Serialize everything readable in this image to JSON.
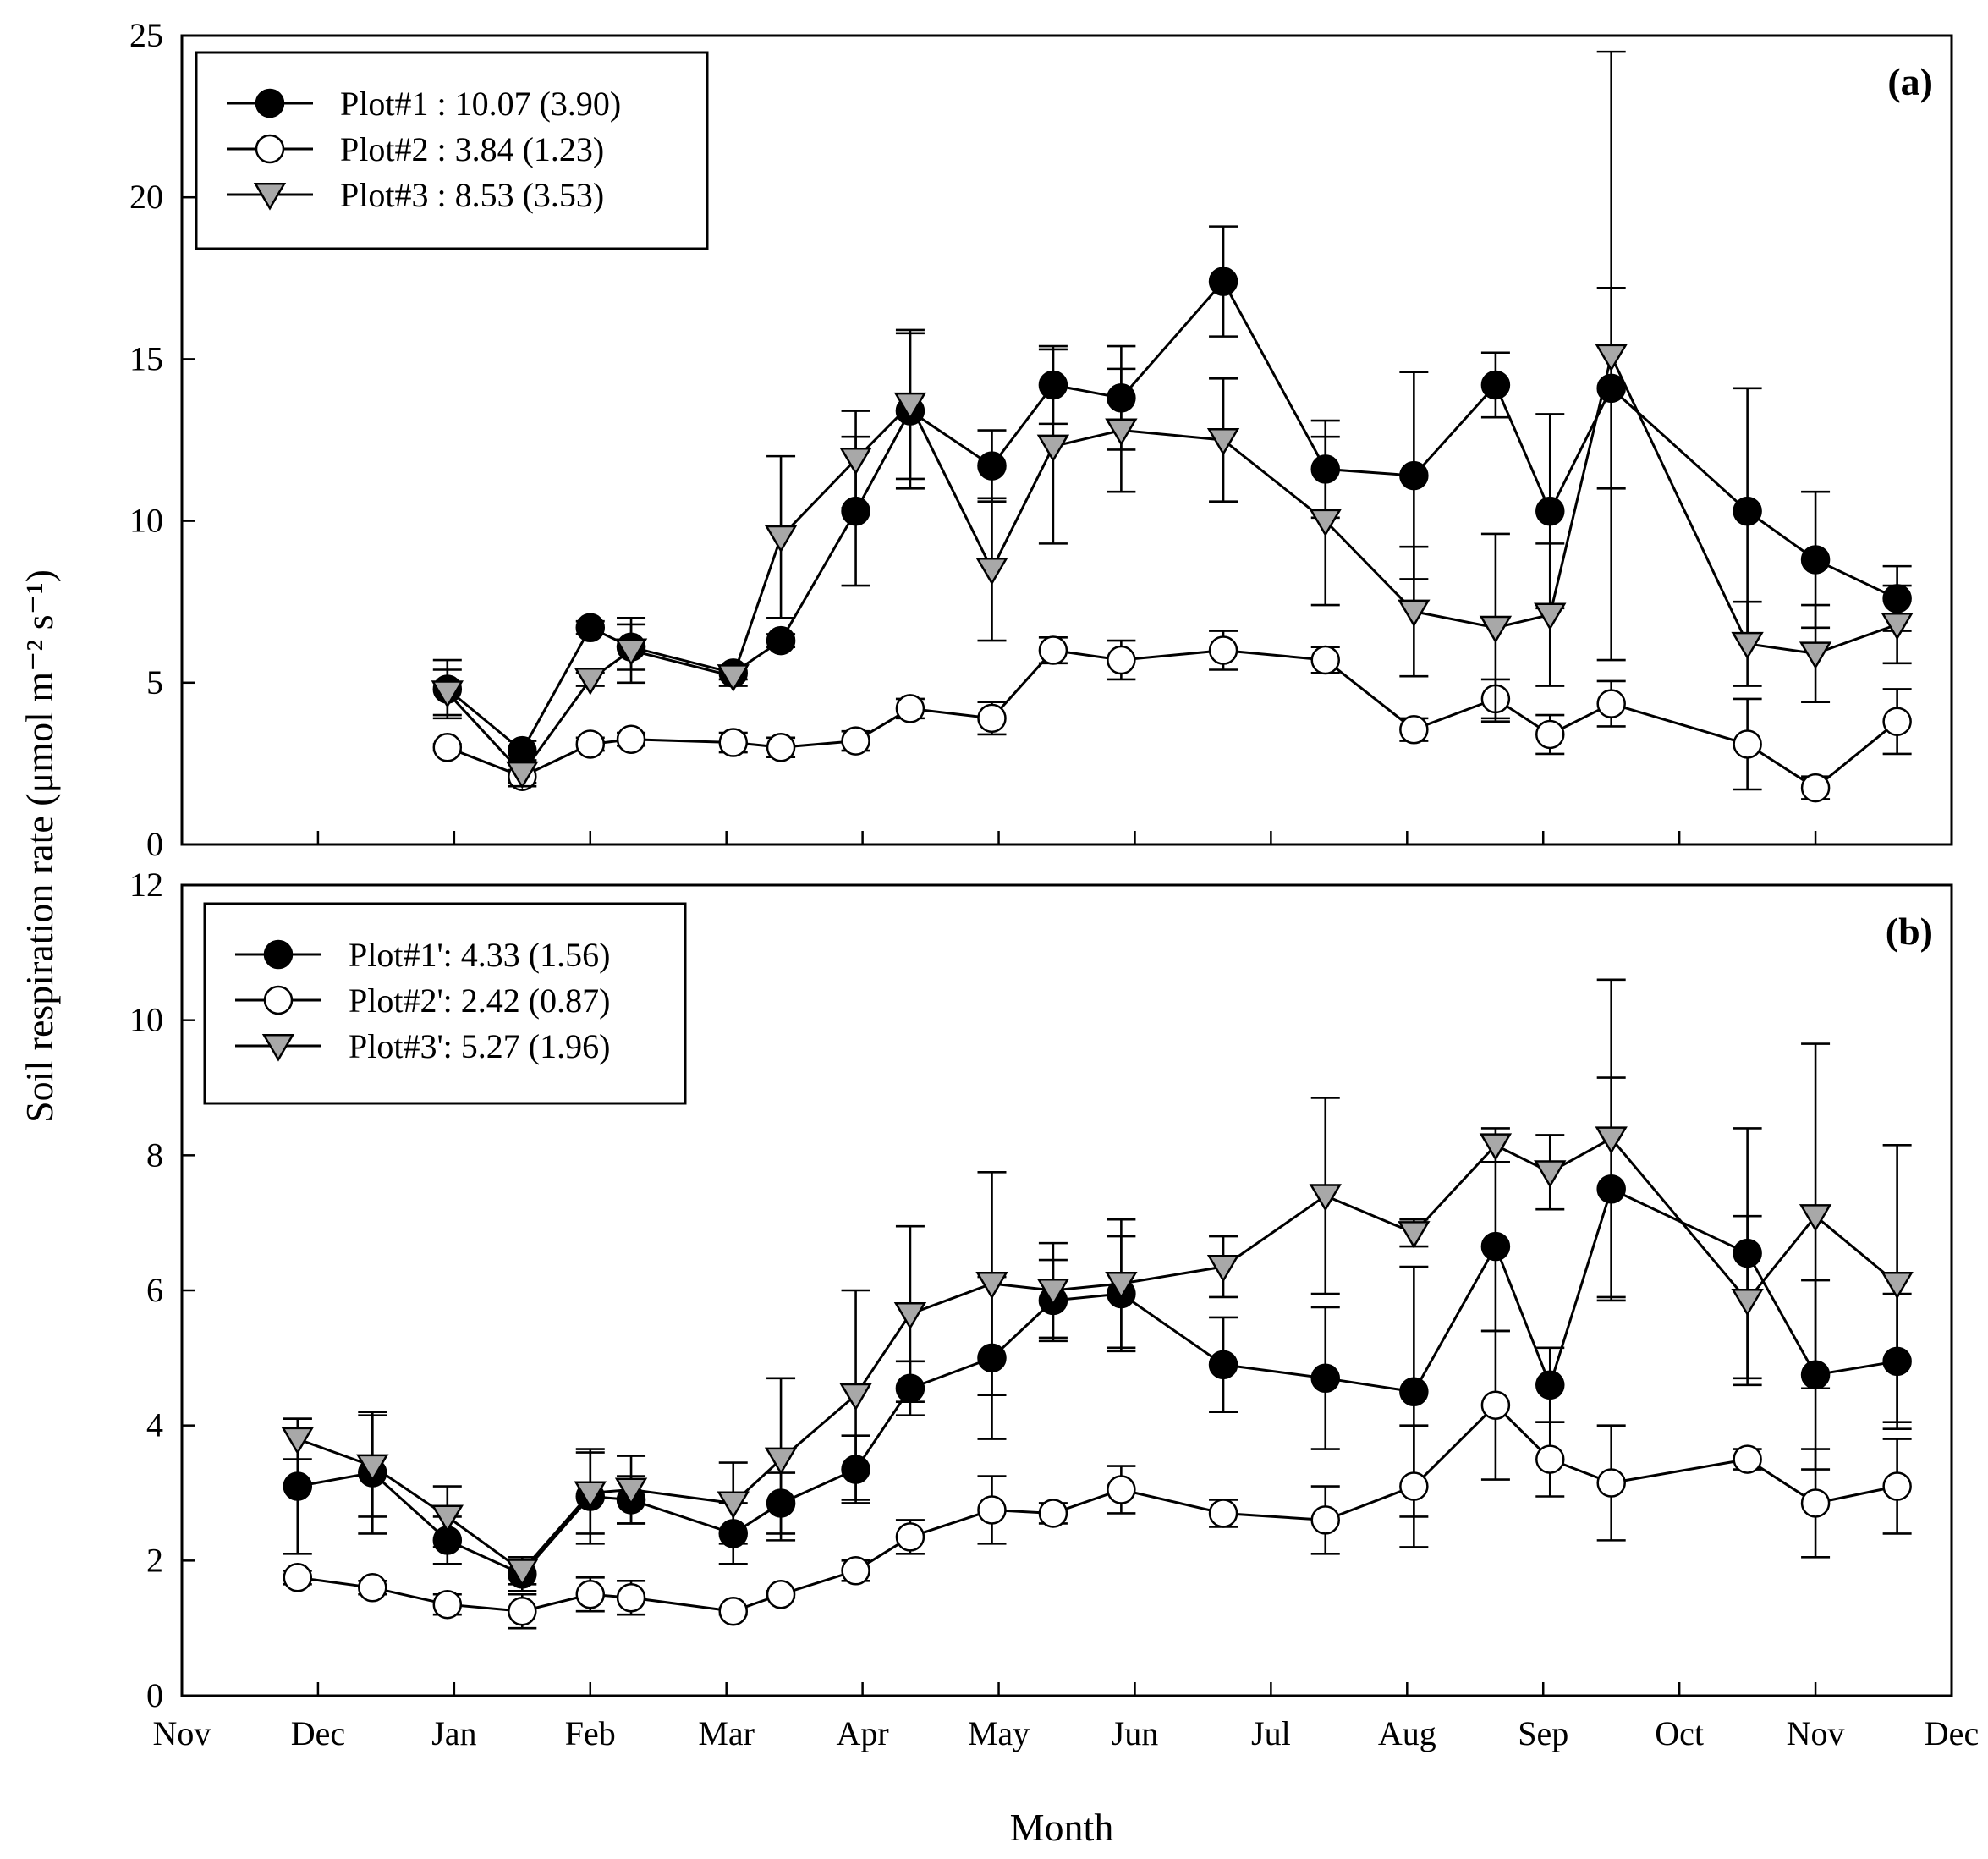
{
  "y_axis_title": "Soil respiration rate (μmol m⁻² s⁻¹)",
  "x_axis_title": "Month",
  "colors": {
    "filled": "#000000",
    "open": "#ffffff",
    "triangle": "#a8a8a8"
  },
  "chart_data": [
    {
      "type": "line",
      "panel_label": "(a)",
      "ylabel": "Soil respiration rate (μmol m⁻² s⁻¹)",
      "xlabel": "Month",
      "ylim": [
        0,
        25
      ],
      "yticks": [
        0,
        5,
        10,
        15,
        20,
        25
      ],
      "x_unit": "months since November 1 (month tick positions)",
      "xlim": [
        0,
        13
      ],
      "xticks": [
        "Nov",
        "Dec",
        "Jan",
        "Feb",
        "Mar",
        "Apr",
        "May",
        "Jun",
        "Jul",
        "Aug",
        "Sep",
        "Oct",
        "Nov",
        "Dec"
      ],
      "legend_position": "top-left",
      "series": [
        {
          "name": "Plot#1 : 10.07 (3.90)",
          "marker": "filled-circle",
          "points": [
            {
              "x": 1.95,
              "y": 4.8,
              "err": 0.9
            },
            {
              "x": 2.5,
              "y": 2.9,
              "err": 0.3
            },
            {
              "x": 3.0,
              "y": 6.7,
              "err": 0.2
            },
            {
              "x": 3.3,
              "y": 6.1,
              "err": 0.7
            },
            {
              "x": 4.05,
              "y": 5.3,
              "err": 0.2
            },
            {
              "x": 4.4,
              "y": 6.3,
              "err": 0.2
            },
            {
              "x": 4.95,
              "y": 10.3,
              "err": 2.3
            },
            {
              "x": 5.35,
              "y": 13.4,
              "err": 2.4
            },
            {
              "x": 5.95,
              "y": 11.7,
              "err": 1.1
            },
            {
              "x": 6.4,
              "y": 14.2,
              "err": 1.2
            },
            {
              "x": 6.9,
              "y": 13.8,
              "err": 1.6
            },
            {
              "x": 7.65,
              "y": 17.4,
              "err": 1.7
            },
            {
              "x": 8.4,
              "y": 11.6,
              "err": 1.5
            },
            {
              "x": 9.05,
              "y": 11.4,
              "err": 3.2
            },
            {
              "x": 9.65,
              "y": 14.2,
              "err": 1.0
            },
            {
              "x": 10.05,
              "y": 10.3,
              "err": 3.0
            },
            {
              "x": 10.5,
              "y": 14.1,
              "err": 3.1
            },
            {
              "x": 11.5,
              "y": 10.3,
              "err": 3.8
            },
            {
              "x": 12.0,
              "y": 8.8,
              "err": 2.1
            },
            {
              "x": 12.6,
              "y": 7.6,
              "err": 1.0
            }
          ]
        },
        {
          "name": "Plot#2 : 3.84 (1.23)",
          "marker": "open-circle",
          "points": [
            {
              "x": 1.95,
              "y": 3.0,
              "err": 0.1
            },
            {
              "x": 2.5,
              "y": 2.1,
              "err": 0.2
            },
            {
              "x": 3.0,
              "y": 3.1,
              "err": 0.2
            },
            {
              "x": 3.3,
              "y": 3.25,
              "err": 0.2
            },
            {
              "x": 4.05,
              "y": 3.15,
              "err": 0.3
            },
            {
              "x": 4.4,
              "y": 3.0,
              "err": 0.3
            },
            {
              "x": 4.95,
              "y": 3.2,
              "err": 0.3
            },
            {
              "x": 5.35,
              "y": 4.2,
              "err": 0.3
            },
            {
              "x": 5.95,
              "y": 3.9,
              "err": 0.5
            },
            {
              "x": 6.4,
              "y": 6.0,
              "err": 0.4
            },
            {
              "x": 6.9,
              "y": 5.7,
              "err": 0.6
            },
            {
              "x": 7.65,
              "y": 6.0,
              "err": 0.6
            },
            {
              "x": 8.4,
              "y": 5.7,
              "err": 0.4
            },
            {
              "x": 9.05,
              "y": 3.55,
              "err": 0.35
            },
            {
              "x": 9.65,
              "y": 4.5,
              "err": 0.6
            },
            {
              "x": 10.05,
              "y": 3.4,
              "err": 0.6
            },
            {
              "x": 10.5,
              "y": 4.35,
              "err": 0.7
            },
            {
              "x": 11.5,
              "y": 3.1,
              "err": 1.4
            },
            {
              "x": 12.0,
              "y": 1.75,
              "err": 0.35
            },
            {
              "x": 12.6,
              "y": 3.8,
              "err": 1.0
            }
          ]
        },
        {
          "name": "Plot#3 : 8.53 (3.53)",
          "marker": "gray-triangle",
          "points": [
            {
              "x": 1.95,
              "y": 4.7,
              "err": 0.7
            },
            {
              "x": 2.5,
              "y": 2.2,
              "err": 0.4
            },
            {
              "x": 3.0,
              "y": 5.1,
              "err": 0.2
            },
            {
              "x": 3.3,
              "y": 6.0,
              "err": 1.0
            },
            {
              "x": 4.05,
              "y": 5.2,
              "err": 0.3
            },
            {
              "x": 4.4,
              "y": 9.5,
              "err": 2.5
            },
            {
              "x": 4.95,
              "y": 11.9,
              "err": 1.5
            },
            {
              "x": 5.35,
              "y": 13.6,
              "err": 2.3
            },
            {
              "x": 5.95,
              "y": 8.5,
              "err": 2.2
            },
            {
              "x": 6.4,
              "y": 12.3,
              "err": 3.0
            },
            {
              "x": 6.9,
              "y": 12.8,
              "err": 1.9
            },
            {
              "x": 7.65,
              "y": 12.5,
              "err": 1.9
            },
            {
              "x": 8.4,
              "y": 10.0,
              "err": 2.6
            },
            {
              "x": 9.05,
              "y": 7.2,
              "err": 2.0
            },
            {
              "x": 9.65,
              "y": 6.7,
              "err": 2.9
            },
            {
              "x": 10.05,
              "y": 7.1,
              "err": 2.2
            },
            {
              "x": 10.5,
              "y": 15.1,
              "err": 9.4
            },
            {
              "x": 11.5,
              "y": 6.2,
              "err": 1.3
            },
            {
              "x": 12.0,
              "y": 5.9,
              "err": 1.5
            },
            {
              "x": 12.6,
              "y": 6.8,
              "err": 1.2
            }
          ]
        }
      ]
    },
    {
      "type": "line",
      "panel_label": "(b)",
      "ylabel": "Soil respiration rate (μmol m⁻² s⁻¹)",
      "xlabel": "Month",
      "ylim": [
        0,
        12
      ],
      "yticks": [
        0,
        2,
        4,
        6,
        8,
        10,
        12
      ],
      "x_unit": "months since November 1 (month tick positions)",
      "xlim": [
        0,
        13
      ],
      "xticks": [
        "Nov",
        "Dec",
        "Jan",
        "Feb",
        "Mar",
        "Apr",
        "May",
        "Jun",
        "Jul",
        "Aug",
        "Sep",
        "Oct",
        "Nov",
        "Dec"
      ],
      "legend_position": "top-left",
      "series": [
        {
          "name": "Plot#1': 4.33 (1.56)",
          "marker": "filled-circle",
          "points": [
            {
              "x": 0.85,
              "y": 3.1,
              "err": 1.0
            },
            {
              "x": 1.4,
              "y": 3.3,
              "err": 0.9
            },
            {
              "x": 1.95,
              "y": 2.3,
              "err": 0.35
            },
            {
              "x": 2.5,
              "y": 1.8,
              "err": 0.25
            },
            {
              "x": 3.0,
              "y": 2.95,
              "err": 0.7
            },
            {
              "x": 3.3,
              "y": 2.9,
              "err": 0.35
            },
            {
              "x": 4.05,
              "y": 2.4,
              "err": 0.45
            },
            {
              "x": 4.4,
              "y": 2.85,
              "err": 0.45
            },
            {
              "x": 4.95,
              "y": 3.35,
              "err": 0.5
            },
            {
              "x": 5.35,
              "y": 4.55,
              "err": 0.4
            },
            {
              "x": 5.95,
              "y": 5.0,
              "err": 1.2
            },
            {
              "x": 6.4,
              "y": 5.85,
              "err": 0.6
            },
            {
              "x": 6.9,
              "y": 5.95,
              "err": 0.85
            },
            {
              "x": 7.65,
              "y": 4.9,
              "err": 0.7
            },
            {
              "x": 8.4,
              "y": 4.7,
              "err": 1.05
            },
            {
              "x": 9.05,
              "y": 4.5,
              "err": 1.85
            },
            {
              "x": 9.65,
              "y": 6.65,
              "err": 1.25
            },
            {
              "x": 10.05,
              "y": 4.6,
              "err": 0.55
            },
            {
              "x": 10.5,
              "y": 7.5,
              "err": 1.65
            },
            {
              "x": 11.5,
              "y": 6.55,
              "err": 1.85
            },
            {
              "x": 12.0,
              "y": 4.75,
              "err": 1.4
            },
            {
              "x": 12.6,
              "y": 4.95,
              "err": 1.0
            }
          ]
        },
        {
          "name": "Plot#2': 2.42 (0.87)",
          "marker": "open-circle",
          "points": [
            {
              "x": 0.85,
              "y": 1.75,
              "err": 0.1
            },
            {
              "x": 1.4,
              "y": 1.6,
              "err": 0.1
            },
            {
              "x": 1.95,
              "y": 1.35,
              "err": 0.15
            },
            {
              "x": 2.5,
              "y": 1.25,
              "err": 0.25
            },
            {
              "x": 3.0,
              "y": 1.5,
              "err": 0.25
            },
            {
              "x": 3.3,
              "y": 1.45,
              "err": 0.25
            },
            {
              "x": 4.05,
              "y": 1.25,
              "err": 0.05
            },
            {
              "x": 4.4,
              "y": 1.5,
              "err": 0.05
            },
            {
              "x": 4.95,
              "y": 1.85,
              "err": 0.15
            },
            {
              "x": 5.35,
              "y": 2.35,
              "err": 0.25
            },
            {
              "x": 5.95,
              "y": 2.75,
              "err": 0.5
            },
            {
              "x": 6.4,
              "y": 2.7,
              "err": 0.15
            },
            {
              "x": 6.9,
              "y": 3.05,
              "err": 0.35
            },
            {
              "x": 7.65,
              "y": 2.7,
              "err": 0.2
            },
            {
              "x": 8.4,
              "y": 2.6,
              "err": 0.5
            },
            {
              "x": 9.05,
              "y": 3.1,
              "err": 0.9
            },
            {
              "x": 9.65,
              "y": 4.3,
              "err": 1.1
            },
            {
              "x": 10.05,
              "y": 3.5,
              "err": 0.55
            },
            {
              "x": 10.5,
              "y": 3.15,
              "err": 0.85
            },
            {
              "x": 11.5,
              "y": 3.5,
              "err": 0.15
            },
            {
              "x": 12.0,
              "y": 2.85,
              "err": 0.8
            },
            {
              "x": 12.6,
              "y": 3.1,
              "err": 0.7
            }
          ]
        },
        {
          "name": "Plot#3': 5.27 (1.96)",
          "marker": "gray-triangle",
          "points": [
            {
              "x": 0.85,
              "y": 3.8,
              "err": 0.3
            },
            {
              "x": 1.4,
              "y": 3.4,
              "err": 0.75
            },
            {
              "x": 1.95,
              "y": 2.65,
              "err": 0.45
            },
            {
              "x": 2.5,
              "y": 1.85,
              "err": 0.2
            },
            {
              "x": 3.0,
              "y": 3.0,
              "err": 0.6
            },
            {
              "x": 3.3,
              "y": 3.05,
              "err": 0.5
            },
            {
              "x": 4.05,
              "y": 2.85,
              "err": 0.6
            },
            {
              "x": 4.4,
              "y": 3.5,
              "err": 1.2
            },
            {
              "x": 4.95,
              "y": 4.45,
              "err": 1.55
            },
            {
              "x": 5.35,
              "y": 5.65,
              "err": 1.3
            },
            {
              "x": 5.95,
              "y": 6.1,
              "err": 1.65
            },
            {
              "x": 6.4,
              "y": 6.0,
              "err": 0.7
            },
            {
              "x": 6.9,
              "y": 6.1,
              "err": 0.95
            },
            {
              "x": 7.65,
              "y": 6.35,
              "err": 0.45
            },
            {
              "x": 8.4,
              "y": 7.4,
              "err": 1.45
            },
            {
              "x": 9.05,
              "y": 6.85,
              "err": 0.2
            },
            {
              "x": 9.65,
              "y": 8.15,
              "err": 0.25
            },
            {
              "x": 10.05,
              "y": 7.75,
              "err": 0.55
            },
            {
              "x": 10.5,
              "y": 8.25,
              "err": 2.35
            },
            {
              "x": 11.5,
              "y": 5.85,
              "err": 1.25
            },
            {
              "x": 12.0,
              "y": 7.1,
              "err": 2.55
            },
            {
              "x": 12.6,
              "y": 6.1,
              "err": 2.05
            }
          ]
        }
      ]
    }
  ]
}
